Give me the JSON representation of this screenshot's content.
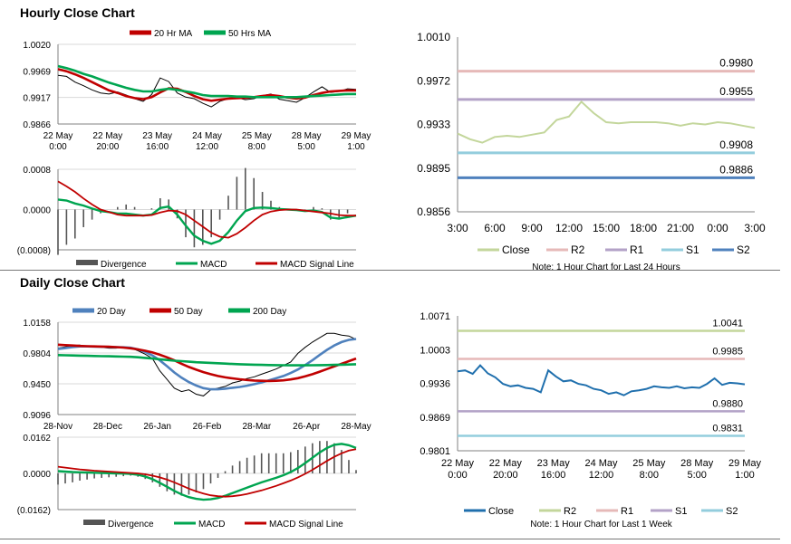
{
  "sections": {
    "hourly_title": "Hourly Close Chart",
    "daily_title": "Daily Close Chart"
  },
  "chart_data": [
    {
      "id": "hourly-price",
      "type": "line",
      "title": "",
      "legend": [
        "20 Hr MA",
        "50 Hrs MA"
      ],
      "colors": {
        "price": "#000000",
        "ma20": "#c00000",
        "ma50": "#00a550"
      },
      "ylim": [
        0.9866,
        1.002
      ],
      "yticks": [
        "1.0020",
        "0.9969",
        "0.9917",
        "0.9866"
      ],
      "xticks": [
        "22 May\n0:00",
        "22 May\n20:00",
        "23 May\n16:00",
        "24 May\n12:00",
        "25 May\n8:00",
        "28 May\n5:00",
        "29 May\n1:00"
      ],
      "price": [
        0.996,
        0.9958,
        0.9947,
        0.994,
        0.9932,
        0.9926,
        0.9924,
        0.9928,
        0.9922,
        0.9915,
        0.991,
        0.9923,
        0.9955,
        0.9948,
        0.9926,
        0.9918,
        0.9915,
        0.9906,
        0.9899,
        0.991,
        0.9915,
        0.9917,
        0.9913,
        0.9915,
        0.9921,
        0.9924,
        0.9914,
        0.9911,
        0.9908,
        0.9917,
        0.9928,
        0.9938,
        0.9927,
        0.9929,
        0.9934,
        0.9933
      ],
      "ma20": [
        0.9972,
        0.9968,
        0.9962,
        0.9955,
        0.9947,
        0.9939,
        0.9931,
        0.9926,
        0.992,
        0.9916,
        0.9914,
        0.9918,
        0.9927,
        0.9935,
        0.9934,
        0.9928,
        0.992,
        0.9914,
        0.9911,
        0.9913,
        0.9915,
        0.9916,
        0.9917,
        0.9918,
        0.992,
        0.9922,
        0.992,
        0.9917,
        0.9915,
        0.9917,
        0.9922,
        0.9926,
        0.9929,
        0.993,
        0.9931,
        0.9931
      ],
      "ma50": [
        0.9978,
        0.9974,
        0.9969,
        0.9963,
        0.9958,
        0.9952,
        0.9946,
        0.9941,
        0.9936,
        0.9932,
        0.9929,
        0.9929,
        0.9932,
        0.9934,
        0.9932,
        0.9929,
        0.9926,
        0.9922,
        0.992,
        0.992,
        0.992,
        0.9919,
        0.9919,
        0.9918,
        0.9918,
        0.9918,
        0.9918,
        0.9918,
        0.9918,
        0.9919,
        0.992,
        0.9921,
        0.9922,
        0.9923,
        0.9924,
        0.9924
      ]
    },
    {
      "id": "hourly-macd",
      "type": "line",
      "title": "",
      "legend": [
        "Divergence",
        "MACD",
        "MACD Signal Line"
      ],
      "colors": {
        "divergence": "#555555",
        "macd": "#00a550",
        "signal": "#c00000"
      },
      "ylim": [
        -0.0008,
        0.0008
      ],
      "yticks": [
        "0.0008",
        "0.0000",
        "(0.0008)"
      ],
      "macd": [
        0.0002,
        0.00018,
        0.00012,
        8e-05,
        2e-05,
        -3e-05,
        -5e-05,
        -8e-05,
        -8e-05,
        -0.0001,
        -0.00012,
        -0.0001,
        3e-05,
        6e-05,
        -0.0001,
        -0.00032,
        -0.00052,
        -0.00062,
        -0.00068,
        -0.00062,
        -0.00045,
        -0.00022,
        -3e-05,
        3e-05,
        4e-05,
        3e-05,
        1e-05,
        0.0,
        -1e-05,
        -3e-05,
        -2e-05,
        -5e-05,
        -0.00016,
        -0.00018,
        -0.00015,
        -0.00012
      ],
      "signal": [
        0.00056,
        0.00046,
        0.00035,
        0.00022,
        0.0001,
        0.0,
        -5e-05,
        -0.0001,
        -0.00012,
        -0.00012,
        -0.00012,
        -0.00011,
        -6e-05,
        -2e-05,
        -3e-05,
        -0.0001,
        -0.00022,
        -0.00034,
        -0.00046,
        -0.00054,
        -0.00056,
        -0.00048,
        -0.00036,
        -0.00022,
        -0.0001,
        -4e-05,
        -1e-05,
        -0.0,
        0.0,
        -2e-05,
        -4e-05,
        -6e-05,
        -8e-05,
        -0.00011,
        -0.00012,
        -0.00012
      ]
    },
    {
      "id": "hourly-levels",
      "type": "line",
      "title": "",
      "legend": [
        "Close",
        "R2",
        "R1",
        "S1",
        "S2"
      ],
      "note": "Note: 1 Hour Chart for Last 24 Hours",
      "colors": {
        "Close": "#c3d69b",
        "R2": "#e6b9b8",
        "R1": "#b3a2c7",
        "S1": "#93cddd",
        "S2": "#4f81bd"
      },
      "ylim": [
        0.9856,
        1.001
      ],
      "yticks": [
        "1.0010",
        "0.9972",
        "0.9933",
        "0.9895",
        "0.9856"
      ],
      "xticks": [
        "3:00",
        "6:00",
        "9:00",
        "12:00",
        "15:00",
        "18:00",
        "21:00",
        "0:00",
        "3:00"
      ],
      "close": [
        0.9925,
        0.992,
        0.9917,
        0.9922,
        0.9923,
        0.9922,
        0.9924,
        0.9926,
        0.9937,
        0.994,
        0.9953,
        0.9943,
        0.9935,
        0.9934,
        0.9935,
        0.9935,
        0.9935,
        0.9934,
        0.9932,
        0.9934,
        0.9933,
        0.9935,
        0.9934,
        0.9932,
        0.993
      ],
      "levels": [
        {
          "name": "R2",
          "value": 0.998,
          "label": "0.9980"
        },
        {
          "name": "R1",
          "value": 0.9955,
          "label": "0.9955"
        },
        {
          "name": "S1",
          "value": 0.9908,
          "label": "0.9908"
        },
        {
          "name": "S2",
          "value": 0.9886,
          "label": "0.9886"
        }
      ]
    },
    {
      "id": "daily-price",
      "type": "line",
      "title": "",
      "legend": [
        "20 Day",
        "50 Day",
        "200 Day"
      ],
      "colors": {
        "price": "#000000",
        "ma20": "#4f81bd",
        "ma50": "#c00000",
        "ma200": "#00a550"
      },
      "ylim": [
        0.9096,
        1.0158
      ],
      "yticks": [
        "1.0158",
        "0.9804",
        "0.9450",
        "0.9096"
      ],
      "xticks": [
        "28-Nov",
        "28-Dec",
        "26-Jan",
        "26-Feb",
        "28-Mar",
        "26-Apr",
        "28-May"
      ],
      "price": [
        0.986,
        0.9875,
        0.989,
        0.9895,
        0.988,
        0.988,
        0.987,
        0.986,
        0.986,
        0.9875,
        0.9862,
        0.983,
        0.979,
        0.974,
        0.96,
        0.95,
        0.94,
        0.936,
        0.938,
        0.933,
        0.931,
        0.938,
        0.94,
        0.942,
        0.946,
        0.948,
        0.951,
        0.953,
        0.956,
        0.959,
        0.962,
        0.966,
        0.97,
        0.98,
        0.987,
        0.993,
        0.998,
        1.003,
        1.003,
        1.001,
        1.0,
        0.996
      ],
      "ma20": [
        0.985,
        0.986,
        0.9872,
        0.988,
        0.988,
        0.9878,
        0.9876,
        0.9874,
        0.9872,
        0.987,
        0.9864,
        0.9846,
        0.9816,
        0.9776,
        0.972,
        0.9652,
        0.958,
        0.952,
        0.947,
        0.943,
        0.94,
        0.9386,
        0.9386,
        0.9394,
        0.9404,
        0.9414,
        0.9428,
        0.9446,
        0.9466,
        0.949,
        0.9514,
        0.954,
        0.9574,
        0.9614,
        0.9666,
        0.9722,
        0.9782,
        0.984,
        0.989,
        0.993,
        0.9955,
        0.9965
      ],
      "ma50": [
        0.99,
        0.9895,
        0.989,
        0.9885,
        0.9882,
        0.988,
        0.9878,
        0.9876,
        0.9872,
        0.9866,
        0.9858,
        0.9846,
        0.983,
        0.981,
        0.9784,
        0.9754,
        0.972,
        0.968,
        0.9644,
        0.9612,
        0.9584,
        0.956,
        0.954,
        0.9524,
        0.9512,
        0.9502,
        0.9494,
        0.9488,
        0.9484,
        0.9482,
        0.9484,
        0.949,
        0.95,
        0.9515,
        0.9535,
        0.956,
        0.959,
        0.962,
        0.965,
        0.968,
        0.971,
        0.974
      ],
      "ma200": [
        0.978,
        0.9778,
        0.9776,
        0.9774,
        0.9772,
        0.977,
        0.9768,
        0.9766,
        0.9764,
        0.9762,
        0.976,
        0.9755,
        0.9748,
        0.974,
        0.9732,
        0.9724,
        0.9716,
        0.971,
        0.9704,
        0.9698,
        0.9694,
        0.969,
        0.9686,
        0.9682,
        0.9678,
        0.9675,
        0.9672,
        0.967,
        0.9668,
        0.9666,
        0.9664,
        0.9663,
        0.9662,
        0.9662,
        0.9662,
        0.9663,
        0.9664,
        0.9666,
        0.9668,
        0.967,
        0.9672,
        0.9675
      ]
    },
    {
      "id": "daily-macd",
      "type": "line",
      "title": "",
      "legend": [
        "Divergence",
        "MACD",
        "MACD Signal Line"
      ],
      "colors": {
        "divergence": "#555555",
        "macd": "#00a550",
        "signal": "#c00000"
      },
      "ylim": [
        -0.0162,
        0.0162
      ],
      "yticks": [
        "0.0162",
        "0.0000",
        "(0.0162)"
      ],
      "macd": [
        0.001,
        0.0008,
        0.0006,
        0.0005,
        0.0004,
        0.0003,
        0.0002,
        0.0001,
        0.0,
        -0.0001,
        -0.0002,
        -0.0006,
        -0.0014,
        -0.0026,
        -0.0042,
        -0.006,
        -0.0078,
        -0.0094,
        -0.0106,
        -0.0114,
        -0.0118,
        -0.0116,
        -0.011,
        -0.01,
        -0.0088,
        -0.0076,
        -0.0064,
        -0.0052,
        -0.004,
        -0.003,
        -0.002,
        -0.0008,
        0.0006,
        0.0024,
        0.0046,
        0.007,
        0.0094,
        0.0114,
        0.0128,
        0.0132,
        0.0126,
        0.0114
      ],
      "signal": [
        0.003,
        0.0026,
        0.0022,
        0.0018,
        0.0015,
        0.0012,
        0.001,
        0.0008,
        0.0006,
        0.0004,
        0.0002,
        0.0,
        -0.0004,
        -0.001,
        -0.0018,
        -0.0028,
        -0.004,
        -0.0054,
        -0.0068,
        -0.008,
        -0.009,
        -0.0098,
        -0.0102,
        -0.0104,
        -0.0102,
        -0.0098,
        -0.0092,
        -0.0084,
        -0.0076,
        -0.0066,
        -0.0056,
        -0.0044,
        -0.0032,
        -0.0018,
        -0.0002,
        0.0016,
        0.0036,
        0.0056,
        0.0074,
        0.009,
        0.0102,
        0.0108
      ]
    },
    {
      "id": "daily-levels",
      "type": "line",
      "title": "",
      "legend": [
        "Close",
        "R2",
        "R1",
        "S1",
        "S2"
      ],
      "note": "Note: 1 Hour Chart for Last 1 Week",
      "colors": {
        "Close": "#1f6fad",
        "R2": "#c3d69b",
        "R1": "#e6b9b8",
        "S1": "#b3a2c7",
        "S2": "#93cddd"
      },
      "ylim": [
        0.9801,
        1.0071
      ],
      "yticks": [
        "1.0071",
        "1.0003",
        "0.9936",
        "0.9869",
        "0.9801"
      ],
      "xticks": [
        "22 May\n0:00",
        "22 May\n20:00",
        "23 May\n16:00",
        "24 May\n12:00",
        "25 May\n8:00",
        "28 May\n5:00",
        "29 May\n1:00"
      ],
      "close": [
        0.996,
        0.9962,
        0.9955,
        0.9972,
        0.9956,
        0.9948,
        0.9935,
        0.993,
        0.9932,
        0.9927,
        0.9925,
        0.9918,
        0.9962,
        0.995,
        0.994,
        0.9942,
        0.9935,
        0.9932,
        0.9925,
        0.9922,
        0.9915,
        0.9918,
        0.9912,
        0.992,
        0.9922,
        0.9925,
        0.993,
        0.9928,
        0.9927,
        0.993,
        0.9926,
        0.9928,
        0.9927,
        0.9935,
        0.9946,
        0.9933,
        0.9937,
        0.9936,
        0.9934
      ],
      "levels": [
        {
          "name": "R2",
          "value": 1.0041,
          "label": "1.0041"
        },
        {
          "name": "R1",
          "value": 0.9985,
          "label": "0.9985"
        },
        {
          "name": "S1",
          "value": 0.988,
          "label": "0.9880"
        },
        {
          "name": "S2",
          "value": 0.9831,
          "label": "0.9831"
        }
      ]
    }
  ]
}
